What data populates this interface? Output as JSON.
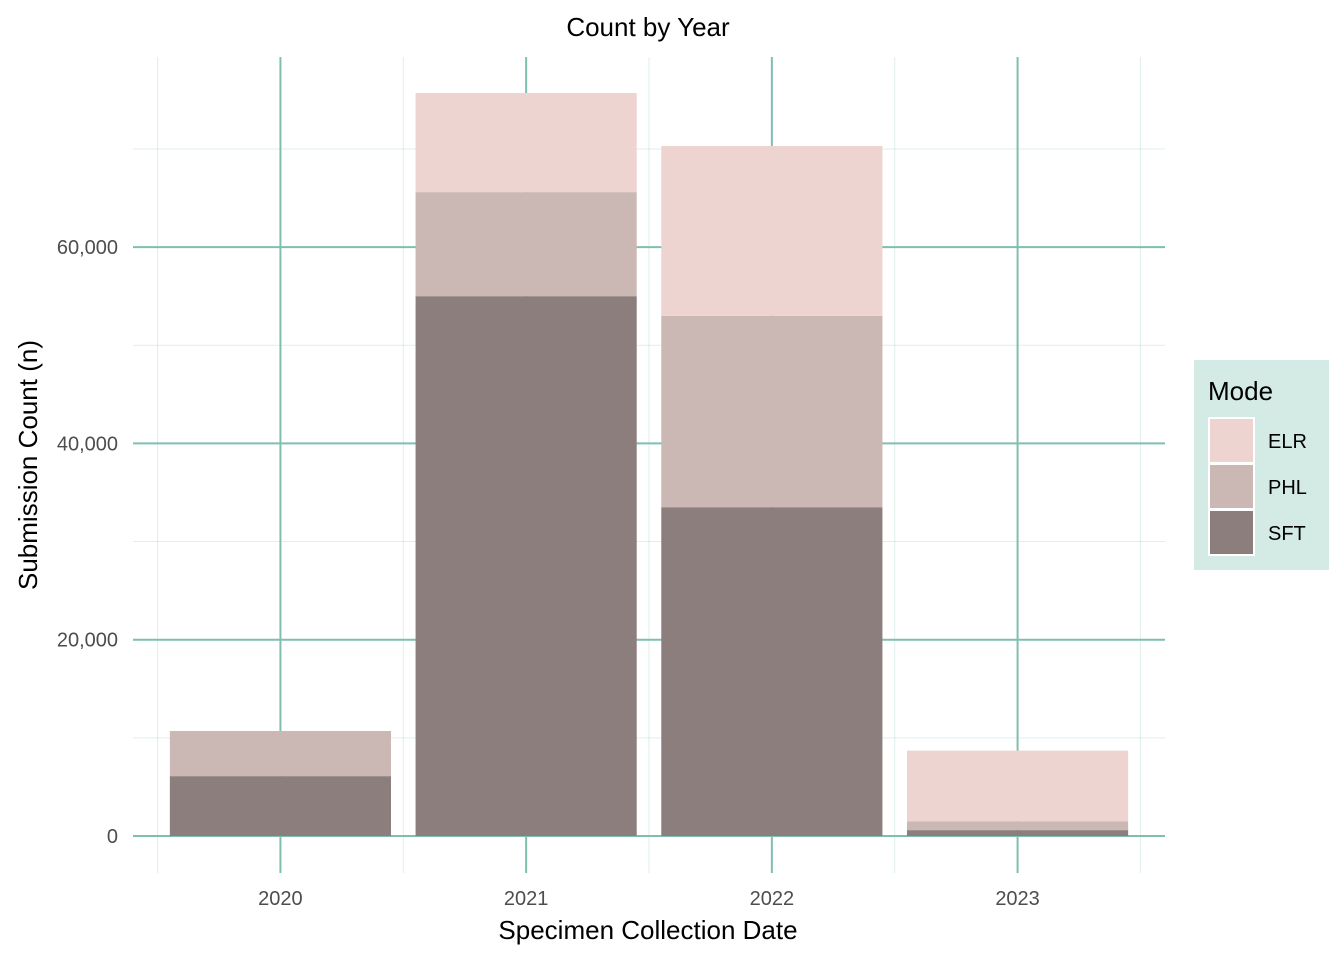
{
  "chart_data": {
    "type": "bar",
    "stacked": true,
    "title": "Count by Year",
    "xlabel": "Specimen Collection Date",
    "ylabel": "Submission Count (n)",
    "categories": [
      "2020",
      "2021",
      "2022",
      "2023"
    ],
    "series": [
      {
        "name": "SFT",
        "color": "#8b7e7c",
        "values": [
          6100,
          55000,
          33500,
          600
        ]
      },
      {
        "name": "PHL",
        "color": "#cbb8b5",
        "values": [
          4600,
          10600,
          19500,
          900
        ]
      },
      {
        "name": "ELR",
        "color": "#eed4d1",
        "values": [
          0,
          10100,
          17300,
          7200
        ]
      }
    ],
    "ylim": [
      0,
      75700
    ],
    "yticks": [
      0,
      20000,
      40000,
      60000
    ],
    "ytick_labels": [
      "0",
      "20,000",
      "40,000",
      "60,000"
    ],
    "grid": true,
    "grid_color": "#7fbfb0",
    "legend": {
      "title": "Mode",
      "placement": "right",
      "background": "#d4eae4",
      "order": [
        "ELR",
        "PHL",
        "SFT"
      ]
    }
  }
}
